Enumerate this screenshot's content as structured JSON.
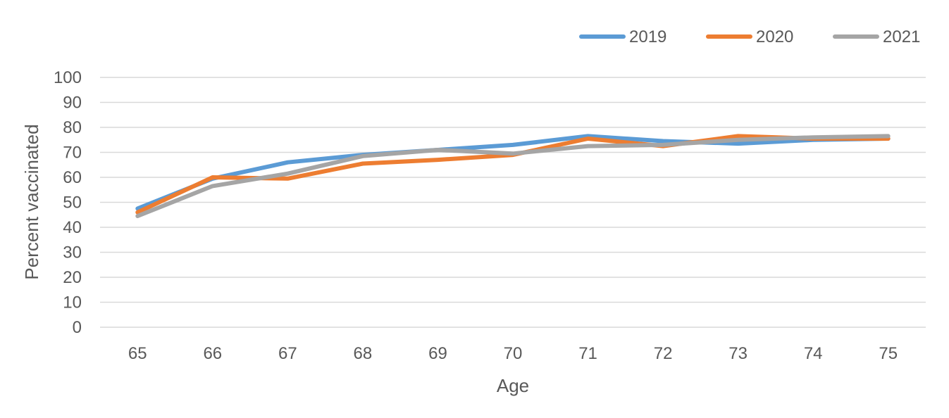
{
  "chart_data": {
    "type": "line",
    "title": "",
    "xlabel": "Age",
    "ylabel": "Percent vaccinated",
    "categories": [
      "65",
      "66",
      "67",
      "68",
      "69",
      "70",
      "71",
      "72",
      "73",
      "74",
      "75"
    ],
    "ylim": [
      0,
      100
    ],
    "yticks": [
      "0",
      "10",
      "20",
      "30",
      "40",
      "50",
      "60",
      "70",
      "80",
      "90",
      "100"
    ],
    "grid": true,
    "legend_position": "top-right",
    "series": [
      {
        "name": "2019",
        "color": "#5B9BD5",
        "values": [
          47.5,
          59.5,
          66,
          69,
          71,
          73,
          76.5,
          74.5,
          73.5,
          75,
          75.5
        ]
      },
      {
        "name": "2020",
        "color": "#ED7D31",
        "values": [
          46,
          60,
          59.5,
          65.5,
          67,
          69,
          75.5,
          72.5,
          76.5,
          75.5,
          75.5
        ]
      },
      {
        "name": "2021",
        "color": "#A5A5A5",
        "values": [
          44.5,
          56.5,
          61.5,
          68.5,
          71,
          69.5,
          72.5,
          73,
          75,
          76,
          76.5
        ]
      }
    ]
  }
}
